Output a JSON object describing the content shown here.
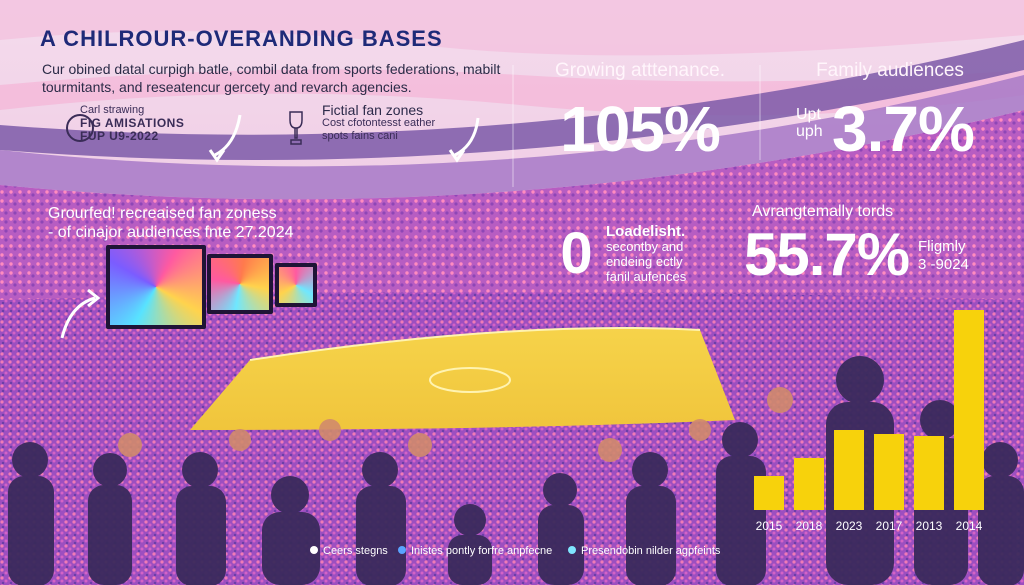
{
  "header": {
    "title": "A CHILROUR-OVERANDING BASES",
    "subtitle": "Cur obined datal curpigh batle, combil data from sports federations, mabilt tourmitants, and reseatencur gercety and revarch agencies."
  },
  "cards": {
    "card1": {
      "line1": "Carl strawing",
      "line2": "FIG AMISATIONS",
      "line3": "FUP U9-2022"
    },
    "card2": {
      "title": "Fictial fan zones",
      "line1": "Cost cfotontesst eather",
      "line2": "spots fains cani"
    }
  },
  "stats": {
    "growing": {
      "label": "Growing atttenance.",
      "value": "105%"
    },
    "family": {
      "label": "Family audiences",
      "prefix1": "Upt",
      "prefix2": "uph",
      "value": "3.7%"
    },
    "zero": {
      "value": "0",
      "line1": "Loadelisht.",
      "line2": "secontby and",
      "line3": "endeing ectly",
      "line4": "fanil aufences"
    },
    "avg": {
      "label": "Avrangtemally tords",
      "value": "55.7%",
      "side1": "Fligmly",
      "side2": "3 -9024"
    }
  },
  "left_block": {
    "line1": "Grourfed! recreaised fan zoness",
    "line2": "- of cinajor audiences fnte 27.2024"
  },
  "chart_data": {
    "type": "bar",
    "categories": [
      "2015",
      "2018",
      "2023",
      "2017",
      "2013",
      "2014"
    ],
    "values": [
      17,
      26,
      40,
      38,
      37,
      100
    ],
    "ylim": [
      0,
      100
    ],
    "color": "#f7d20c"
  },
  "legend": {
    "items": [
      {
        "label": "Ceers stegns",
        "color": "#ffffff"
      },
      {
        "label": "Inistes pontly forfre anpfecne",
        "color": "#5aa3ff"
      },
      {
        "label": "Presendobin nilder agpfeints",
        "color": "#7fe6ff"
      }
    ]
  }
}
